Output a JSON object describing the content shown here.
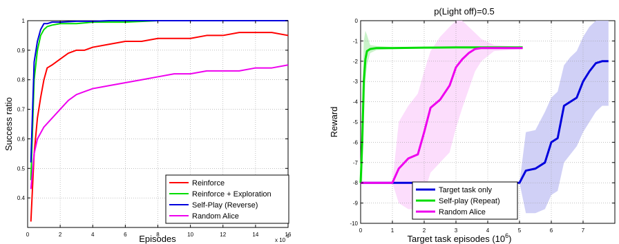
{
  "chart_data": [
    {
      "type": "line",
      "title": "",
      "xlabel": "Episodes",
      "ylabel": "Success ratio",
      "x_multiplier": "x 10",
      "x_multiplier_exp": "5",
      "xlim": [
        0,
        16
      ],
      "ylim": [
        0.3,
        1.0
      ],
      "x_ticks": [
        "0",
        "2",
        "4",
        "6",
        "8",
        "10",
        "12",
        "14",
        "16"
      ],
      "y_ticks": [
        "0.4",
        "0.5",
        "0.6",
        "0.7",
        "0.8",
        "0.9",
        "1"
      ],
      "grid": true,
      "legend_position": "bottom-right",
      "series": [
        {
          "name": "Reinforce",
          "color": "#ff0000",
          "x": [
            0.2,
            0.4,
            0.6,
            0.8,
            1.0,
            1.2,
            1.5,
            2,
            2.5,
            3,
            3.5,
            4,
            5,
            6,
            7,
            8,
            9,
            10,
            11,
            12,
            13,
            14,
            15,
            16
          ],
          "y": [
            0.32,
            0.55,
            0.67,
            0.74,
            0.8,
            0.84,
            0.85,
            0.87,
            0.89,
            0.9,
            0.9,
            0.91,
            0.92,
            0.93,
            0.93,
            0.94,
            0.94,
            0.94,
            0.95,
            0.95,
            0.96,
            0.96,
            0.96,
            0.95
          ]
        },
        {
          "name": "Reinforce + Exploration",
          "color": "#00dd00",
          "x": [
            0.2,
            0.4,
            0.6,
            0.8,
            1.0,
            1.2,
            1.5,
            2,
            3,
            4,
            5,
            6,
            8,
            10,
            12,
            14,
            16
          ],
          "y": [
            0.46,
            0.8,
            0.9,
            0.95,
            0.97,
            0.98,
            0.985,
            0.99,
            0.99,
            0.995,
            0.995,
            0.995,
            1.0,
            1.0,
            1.0,
            1.0,
            1.0
          ]
        },
        {
          "name": "Self-Play (Reverse)",
          "color": "#0000dd",
          "x": [
            0.2,
            0.4,
            0.6,
            0.8,
            1.0,
            1.2,
            1.5,
            2,
            3,
            4,
            5,
            6,
            8,
            10,
            12,
            14,
            16
          ],
          "y": [
            0.52,
            0.86,
            0.93,
            0.97,
            0.99,
            0.99,
            0.995,
            0.995,
            0.998,
            0.998,
            1.0,
            1.0,
            1.0,
            1.0,
            1.0,
            1.0,
            1.0
          ]
        },
        {
          "name": "Random Alice",
          "color": "#ee00ee",
          "x": [
            0.2,
            0.4,
            0.6,
            0.8,
            1.0,
            1.5,
            2,
            2.5,
            3,
            3.5,
            4,
            5,
            6,
            7,
            8,
            9,
            10,
            11,
            12,
            13,
            14,
            15,
            16
          ],
          "y": [
            0.43,
            0.55,
            0.6,
            0.62,
            0.64,
            0.67,
            0.7,
            0.73,
            0.75,
            0.76,
            0.77,
            0.78,
            0.79,
            0.8,
            0.81,
            0.82,
            0.82,
            0.83,
            0.83,
            0.83,
            0.84,
            0.84,
            0.85
          ]
        }
      ]
    },
    {
      "type": "line",
      "title": "p(Light off)=0.5",
      "xlabel": "Target task episodes (10",
      "xlabel_exp": "6",
      "xlabel_tail": ")",
      "ylabel": "Reward",
      "xlim": [
        0,
        8
      ],
      "ylim": [
        -10,
        0
      ],
      "x_ticks": [
        "0",
        "1",
        "2",
        "3",
        "4",
        "5",
        "6",
        "7"
      ],
      "y_ticks": [
        "0",
        "-1",
        "-2",
        "-3",
        "-4",
        "-5",
        "-6",
        "-7",
        "-8",
        "-9",
        "-10"
      ],
      "grid": true,
      "legend_position": "bottom-left",
      "series": [
        {
          "name": "Target task only",
          "color": "#0000dd",
          "band_color": "#c8c8f5",
          "x": [
            0,
            5.0,
            5.2,
            5.5,
            5.8,
            6.0,
            6.2,
            6.4,
            6.6,
            6.8,
            7.0,
            7.2,
            7.4,
            7.6,
            7.8
          ],
          "y": [
            -8,
            -8,
            -7.4,
            -7.3,
            -7.0,
            -6.0,
            -5.8,
            -4.2,
            -4.0,
            -3.8,
            -3.0,
            -2.5,
            -2.1,
            -2.0,
            -2.0
          ],
          "band_upper": [
            -8,
            -8,
            -5.5,
            -5.4,
            -4.5,
            -3.8,
            -3.5,
            -2.2,
            -1.8,
            -1.5,
            -0.8,
            -0.3,
            0,
            0,
            0
          ],
          "band_lower": [
            -8,
            -8,
            -9.5,
            -9.5,
            -9.3,
            -8.6,
            -8.4,
            -7.0,
            -6.6,
            -6.2,
            -5.5,
            -5.0,
            -4.5,
            -4.2,
            -4.2
          ]
        },
        {
          "name": "Self-play (Repeat)",
          "color": "#00dd00",
          "band_color": "#c0f0c0",
          "x": [
            0,
            0.05,
            0.1,
            0.15,
            0.2,
            0.3,
            0.5,
            1.0,
            2.0,
            3.0,
            4.0,
            5.1
          ],
          "y": [
            -8,
            -6.0,
            -3.0,
            -1.9,
            -1.5,
            -1.4,
            -1.35,
            -1.35,
            -1.33,
            -1.32,
            -1.32,
            -1.32
          ],
          "band_upper": [
            -8,
            -4.0,
            -1.0,
            -0.5,
            -0.7,
            -1.2,
            -1.25,
            -1.3,
            -1.3,
            -1.3,
            -1.3,
            -1.3
          ],
          "band_lower": [
            -8,
            -8,
            -5.0,
            -3.0,
            -2.2,
            -1.6,
            -1.45,
            -1.4,
            -1.37,
            -1.35,
            -1.35,
            -1.35
          ]
        },
        {
          "name": "Random Alice",
          "color": "#ee00ee",
          "band_color": "#fbd7fb",
          "x": [
            0,
            1.0,
            1.2,
            1.5,
            1.8,
            2.0,
            2.2,
            2.5,
            2.8,
            3.0,
            3.2,
            3.4,
            3.6,
            3.8,
            4.2,
            5.1
          ],
          "y": [
            -8,
            -8,
            -7.3,
            -6.8,
            -6.6,
            -5.5,
            -4.3,
            -3.9,
            -3.2,
            -2.3,
            -1.9,
            -1.6,
            -1.4,
            -1.35,
            -1.35,
            -1.35
          ],
          "band_upper": [
            -8,
            -8,
            -5.0,
            -4.2,
            -3.6,
            -2.5,
            -1.5,
            -0.8,
            -0.3,
            0,
            0,
            -0.3,
            -0.6,
            -0.9,
            -1.2,
            -1.3
          ],
          "band_lower": [
            -8,
            -8,
            -9.0,
            -9.3,
            -9.3,
            -8.5,
            -7.5,
            -7.0,
            -6.5,
            -5.3,
            -4.3,
            -3.4,
            -2.5,
            -2.0,
            -1.5,
            -1.4
          ]
        }
      ]
    }
  ]
}
